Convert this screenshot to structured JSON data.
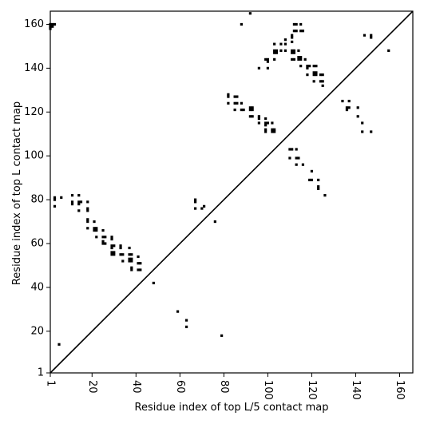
{
  "chart_data": {
    "type": "scatter",
    "title": "",
    "xlabel": "Residue index of top L/5 contact map",
    "ylabel": "Residue index of top L contact map",
    "xlim": [
      1,
      166
    ],
    "ylim": [
      1,
      166
    ],
    "xticks": [
      1,
      20,
      40,
      60,
      80,
      100,
      120,
      140,
      160
    ],
    "yticks": [
      1,
      20,
      40,
      60,
      80,
      100,
      120,
      140,
      160
    ],
    "xtick_labels": [
      "1",
      "20",
      "40",
      "60",
      "80",
      "100",
      "120",
      "140",
      "160"
    ],
    "ytick_labels": [
      "1",
      "20",
      "40",
      "60",
      "80",
      "100",
      "120",
      "140",
      "160"
    ],
    "marker_color": "#000000",
    "diagonal_color": "#000000",
    "grid": false,
    "series": [
      {
        "points": [
          [
            5,
            14
          ],
          [
            48,
            42
          ],
          [
            59,
            29
          ],
          [
            63,
            25
          ],
          [
            63,
            22
          ],
          [
            76,
            70
          ],
          [
            79,
            18
          ],
          [
            67,
            80
          ],
          [
            67,
            79
          ],
          [
            67,
            76
          ],
          [
            70,
            76
          ],
          [
            71,
            77
          ]
        ]
      },
      {
        "points": [
          [
            1,
            160
          ],
          [
            2,
            160
          ],
          [
            3,
            160
          ],
          [
            1,
            159
          ],
          [
            2,
            159
          ],
          [
            1,
            158
          ],
          [
            3,
            81
          ],
          [
            3,
            80
          ],
          [
            3,
            77
          ],
          [
            6,
            81
          ],
          [
            11,
            82
          ],
          [
            11,
            79
          ],
          [
            11,
            78
          ],
          [
            14,
            82
          ],
          [
            14,
            79
          ],
          [
            14,
            78
          ],
          [
            15,
            79
          ],
          [
            14,
            75
          ],
          [
            18,
            79
          ],
          [
            18,
            76
          ],
          [
            18,
            75
          ],
          [
            18,
            71
          ],
          [
            18,
            70
          ],
          [
            18,
            67
          ],
          [
            21,
            70
          ],
          [
            21,
            67
          ],
          [
            22,
            67
          ],
          [
            21,
            66
          ],
          [
            22,
            66
          ],
          [
            22,
            63
          ],
          [
            25,
            66
          ],
          [
            25,
            63
          ],
          [
            26,
            63
          ],
          [
            25,
            61
          ],
          [
            25,
            60
          ],
          [
            26,
            60
          ],
          [
            29,
            63
          ],
          [
            29,
            62
          ],
          [
            29,
            59
          ],
          [
            30,
            59
          ],
          [
            29,
            58
          ],
          [
            29,
            56
          ],
          [
            30,
            56
          ],
          [
            29,
            55
          ],
          [
            30,
            55
          ],
          [
            33,
            59
          ],
          [
            33,
            58
          ],
          [
            33,
            55
          ],
          [
            34,
            55
          ],
          [
            34,
            52
          ],
          [
            37,
            58
          ],
          [
            37,
            55
          ],
          [
            38,
            55
          ],
          [
            37,
            53
          ],
          [
            38,
            53
          ],
          [
            37,
            52
          ],
          [
            38,
            52
          ],
          [
            38,
            49
          ],
          [
            38,
            48
          ],
          [
            41,
            54
          ],
          [
            41,
            51
          ],
          [
            42,
            51
          ],
          [
            41,
            48
          ],
          [
            42,
            48
          ]
        ]
      },
      {
        "points": [
          [
            82,
            128
          ],
          [
            82,
            127
          ],
          [
            82,
            124
          ],
          [
            85,
            127
          ],
          [
            86,
            127
          ],
          [
            85,
            124
          ],
          [
            86,
            124
          ],
          [
            85,
            121
          ],
          [
            88,
            124
          ],
          [
            88,
            121
          ],
          [
            89,
            121
          ],
          [
            92,
            122
          ],
          [
            93,
            122
          ],
          [
            92,
            121
          ],
          [
            93,
            121
          ],
          [
            92,
            118
          ],
          [
            93,
            118
          ],
          [
            96,
            118
          ],
          [
            96,
            117
          ],
          [
            96,
            115
          ],
          [
            99,
            117
          ],
          [
            99,
            115
          ],
          [
            100,
            115
          ],
          [
            99,
            114
          ],
          [
            99,
            112
          ],
          [
            99,
            111
          ],
          [
            102,
            115
          ],
          [
            102,
            112
          ],
          [
            103,
            112
          ],
          [
            102,
            111
          ],
          [
            103,
            111
          ],
          [
            88,
            160
          ],
          [
            92,
            165
          ],
          [
            96,
            140
          ],
          [
            99,
            144
          ],
          [
            100,
            144
          ],
          [
            100,
            143
          ],
          [
            100,
            140
          ],
          [
            103,
            151
          ],
          [
            103,
            148
          ],
          [
            104,
            148
          ],
          [
            103,
            147
          ],
          [
            104,
            147
          ],
          [
            103,
            144
          ],
          [
            106,
            151
          ],
          [
            106,
            148
          ],
          [
            108,
            153
          ],
          [
            108,
            151
          ],
          [
            108,
            148
          ],
          [
            111,
            155
          ],
          [
            111,
            154
          ],
          [
            111,
            152
          ],
          [
            111,
            148
          ],
          [
            112,
            148
          ],
          [
            111,
            147
          ],
          [
            112,
            147
          ],
          [
            111,
            144
          ],
          [
            112,
            144
          ],
          [
            112,
            160
          ],
          [
            113,
            160
          ],
          [
            112,
            157
          ],
          [
            113,
            157
          ],
          [
            115,
            160
          ],
          [
            115,
            157
          ],
          [
            116,
            157
          ],
          [
            114,
            148
          ],
          [
            114,
            145
          ],
          [
            115,
            145
          ],
          [
            114,
            144
          ],
          [
            115,
            144
          ],
          [
            115,
            141
          ],
          [
            117,
            144
          ],
          [
            118,
            141
          ],
          [
            119,
            141
          ],
          [
            118,
            140
          ],
          [
            118,
            137
          ],
          [
            121,
            141
          ],
          [
            122,
            141
          ],
          [
            121,
            138
          ],
          [
            122,
            138
          ],
          [
            121,
            137
          ],
          [
            122,
            137
          ],
          [
            121,
            134
          ],
          [
            124,
            137
          ],
          [
            125,
            137
          ],
          [
            124,
            134
          ],
          [
            125,
            134
          ],
          [
            125,
            132
          ],
          [
            110,
            103
          ],
          [
            111,
            103
          ],
          [
            110,
            99
          ],
          [
            113,
            103
          ],
          [
            113,
            99
          ],
          [
            114,
            99
          ],
          [
            113,
            96
          ],
          [
            116,
            96
          ],
          [
            120,
            93
          ],
          [
            119,
            89
          ],
          [
            120,
            89
          ],
          [
            123,
            89
          ],
          [
            123,
            86
          ],
          [
            123,
            85
          ],
          [
            126,
            82
          ],
          [
            134,
            125
          ],
          [
            137,
            125
          ],
          [
            136,
            122
          ],
          [
            137,
            122
          ],
          [
            136,
            121
          ],
          [
            141,
            122
          ],
          [
            141,
            118
          ],
          [
            144,
            155
          ],
          [
            147,
            155
          ],
          [
            147,
            154
          ],
          [
            143,
            115
          ],
          [
            143,
            111
          ],
          [
            147,
            111
          ],
          [
            155,
            148
          ]
        ]
      }
    ]
  }
}
